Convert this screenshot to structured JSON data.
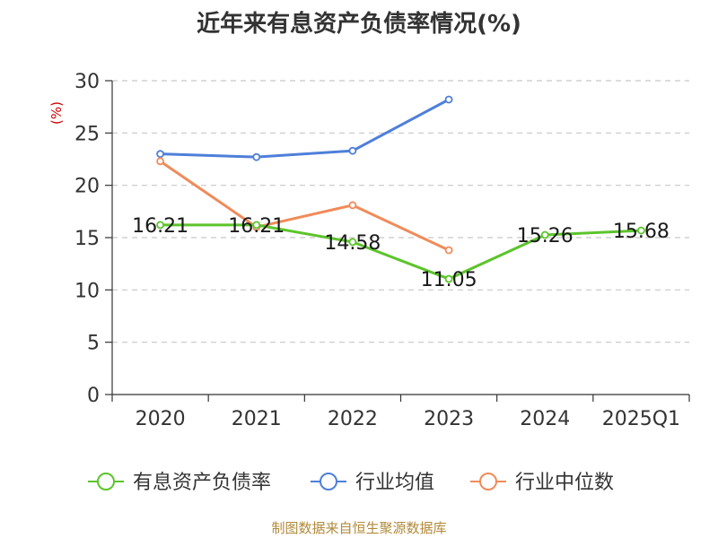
{
  "chart_data": {
    "type": "line",
    "title": "近年来有息资产负债率情况(%)",
    "ylabel": "(%)",
    "categories": [
      "2020",
      "2021",
      "2022",
      "2023",
      "2024",
      "2025Q1"
    ],
    "ylim": [
      0,
      30
    ],
    "yticks": [
      0,
      5,
      10,
      15,
      20,
      25,
      30
    ],
    "grid": true,
    "legend_position": "bottom",
    "series": [
      {
        "name": "有息资产负债率",
        "color": "#5cc42b",
        "values": [
          16.21,
          16.21,
          14.58,
          11.05,
          15.26,
          15.68
        ],
        "labels": [
          "16.21",
          "16.21",
          "14.58",
          "11.05",
          "15.26",
          "15.68"
        ]
      },
      {
        "name": "行业均值",
        "color": "#4e7fd9",
        "values": [
          23.0,
          22.7,
          23.3,
          28.2,
          null,
          null
        ]
      },
      {
        "name": "行业中位数",
        "color": "#f08b5a",
        "values": [
          22.3,
          16.0,
          18.1,
          13.8,
          null,
          null
        ]
      }
    ]
  },
  "footer": {
    "source": "制图数据来自恒生聚源数据库"
  }
}
